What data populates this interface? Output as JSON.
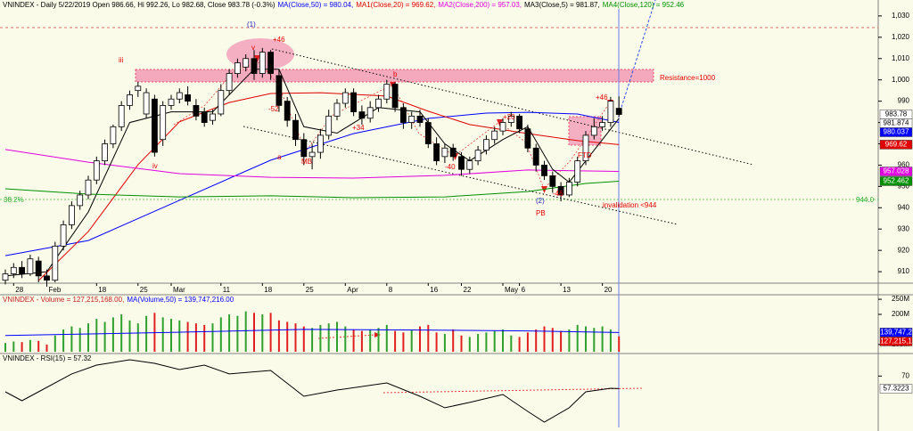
{
  "chart_data": [
    {
      "type": "candlestick",
      "title": "VNINDEX - Daily 5/22/2019 Open 986.66, Hi 992.26, Lo 982.68, Close 983.78 (-0.3%)",
      "categories": [
        null,
        "28",
        null,
        null,
        null,
        "Feb",
        null,
        null,
        null,
        null,
        null,
        "18",
        null,
        null,
        null,
        null,
        "25",
        null,
        null,
        null,
        "Mar",
        null,
        null,
        null,
        null,
        null,
        "11",
        null,
        null,
        null,
        null,
        "18",
        null,
        null,
        null,
        null,
        "25",
        null,
        null,
        null,
        null,
        "Apr",
        null,
        null,
        null,
        null,
        "8",
        null,
        null,
        null,
        null,
        "16",
        null,
        null,
        null,
        "22",
        null,
        null,
        null,
        null,
        "May",
        null,
        "6",
        null,
        null,
        null,
        null,
        "13",
        null,
        null,
        null,
        null,
        "20",
        null,
        null
      ],
      "open": [
        906,
        909,
        912,
        909,
        915,
        908,
        906,
        922,
        932,
        941,
        946,
        953,
        962,
        970,
        978,
        988,
        995,
        984,
        991,
        972,
        988,
        991,
        993,
        988,
        985,
        981,
        984,
        995,
        1003,
        1006,
        1010,
        1003,
        1013,
        1002,
        990,
        981,
        972,
        964,
        966,
        974,
        983,
        989,
        994,
        985,
        982,
        987,
        991,
        998,
        987,
        980,
        983,
        980,
        970,
        964,
        968,
        964,
        958,
        962,
        967,
        972,
        976,
        980,
        983,
        977,
        968,
        960,
        955,
        950,
        946,
        952,
        962,
        974,
        978,
        980,
        986.66
      ],
      "high": [
        911,
        914,
        915,
        918,
        917,
        911,
        924,
        934,
        943,
        948,
        955,
        964,
        972,
        979,
        990,
        995,
        999,
        996,
        993,
        990,
        993,
        996,
        997,
        991,
        987,
        986,
        998,
        1005,
        1010,
        1012,
        1014,
        1015,
        1014,
        1005,
        992,
        984,
        975,
        970,
        977,
        986,
        991,
        996,
        996,
        988,
        990,
        993,
        1000,
        999,
        989,
        985,
        986,
        982,
        973,
        970,
        970,
        966,
        964,
        969,
        974,
        978,
        982,
        985,
        984,
        979,
        970,
        962,
        957,
        952,
        954,
        964,
        976,
        982,
        983,
        992,
        992.26
      ],
      "low": [
        904,
        907,
        907,
        908,
        905,
        903,
        905,
        920,
        930,
        939,
        944,
        951,
        960,
        968,
        976,
        986,
        992,
        982,
        964,
        969,
        986,
        989,
        988,
        981,
        978,
        979,
        983,
        993,
        1001,
        1004,
        1000,
        1001,
        1000,
        985,
        978,
        969,
        960,
        958,
        963,
        972,
        981,
        987,
        983,
        979,
        980,
        985,
        989,
        985,
        977,
        977,
        978,
        968,
        960,
        961,
        962,
        955,
        956,
        960,
        965,
        970,
        974,
        978,
        975,
        966,
        957,
        953,
        947,
        943,
        945,
        950,
        960,
        972,
        976,
        978,
        982.68
      ],
      "close": [
        909,
        912,
        909,
        916,
        908,
        906,
        922,
        932,
        941,
        946,
        953,
        962,
        970,
        978,
        988,
        993,
        997,
        994,
        966,
        988,
        991,
        994,
        990,
        983,
        980,
        984,
        995,
        1003,
        1008,
        1010,
        1003,
        1013,
        1003,
        988,
        981,
        972,
        964,
        966,
        974,
        983,
        989,
        994,
        985,
        982,
        987,
        991,
        998,
        987,
        980,
        983,
        980,
        970,
        962,
        968,
        964,
        958,
        962,
        967,
        972,
        976,
        980,
        983,
        977,
        968,
        960,
        955,
        950,
        946,
        952,
        962,
        974,
        978,
        980,
        990,
        983.78
      ],
      "up_color": "#ffffff",
      "down_color": "#000000",
      "series": [
        {
          "name": "MA(Close,50) = 980.04,",
          "color": "#0000ff",
          "x": [
            0,
            10,
            21,
            32,
            42,
            51,
            58,
            63,
            69,
            74
          ],
          "values": [
            917.5,
            924.6,
            943.5,
            962.3,
            974.8,
            981.9,
            984.4,
            984.8,
            984.0,
            980.04
          ]
        },
        {
          "name": "MA1(Close,20) = 969.62,",
          "color": "#e00000",
          "x": [
            4,
            10,
            16,
            21,
            27,
            32,
            38,
            46,
            51,
            56,
            63,
            69,
            74
          ],
          "values": [
            905.8,
            928.8,
            960.2,
            980.3,
            989.4,
            993.6,
            994.0,
            992.4,
            985.3,
            979.0,
            974.8,
            971.5,
            969.62
          ]
        },
        {
          "name": "MA2(Close,200) = 957.03,",
          "color": "#e000e0",
          "x": [
            0,
            10,
            21,
            32,
            42,
            53,
            63,
            74
          ],
          "values": [
            967.3,
            961.4,
            956.0,
            954.3,
            953.9,
            955.2,
            957.7,
            957.03
          ]
        },
        {
          "name": "MA3(Close,5) = 981.87,",
          "color": "#000000",
          "x": [
            0,
            5,
            10,
            15,
            20,
            25,
            30,
            33,
            36,
            40,
            45,
            50,
            53,
            56,
            60,
            63,
            66,
            68,
            71,
            74
          ],
          "values": [
            908,
            910,
            938,
            980,
            985,
            985,
            1005,
            1005,
            978,
            975,
            987,
            985,
            970,
            962,
            972,
            978,
            958,
            952,
            967,
            981.87
          ]
        },
        {
          "name": "MA4(Close,120) = 952.46",
          "color": "#009000",
          "x": [
            0,
            10,
            21,
            32,
            42,
            53,
            63,
            70,
            74
          ],
          "values": [
            948.9,
            946.4,
            945.1,
            945.6,
            944.7,
            945.1,
            947.6,
            951.4,
            952.46
          ]
        }
      ],
      "ylim": [
        904.6,
        1033.3
      ],
      "yticks": [
        {
          "value": 1030,
          "label": "1,030"
        },
        {
          "value": 1020,
          "label": "1,020"
        },
        {
          "value": 1010,
          "label": "1,010"
        },
        {
          "value": 1000,
          "label": "1,000"
        },
        990,
        980,
        970,
        960,
        950,
        940,
        930,
        920,
        910
      ],
      "price_tags": [
        {
          "value": 983.78,
          "color": "#ffffff"
        },
        {
          "value": 981.874,
          "color": "#ffffff"
        },
        {
          "value": 980.037,
          "color": "#0000ff"
        },
        {
          "value": 969.62,
          "color": "#e00000"
        },
        {
          "value": 957.028,
          "color": "#e000e0"
        },
        {
          "value": 952.462,
          "color": "#009000"
        }
      ],
      "annotations": [
        {
          "text": "(1)",
          "color": "#2020c0"
        },
        {
          "text": "+46",
          "color": "#e00000"
        },
        {
          "text": "v",
          "color": "#e00000"
        },
        {
          "text": "iii",
          "color": "#e00000"
        },
        {
          "text": "iv",
          "color": "#e00000"
        },
        {
          "text": "-52",
          "color": "#e00000"
        },
        {
          "text": "a",
          "color": "#e00000"
        },
        {
          "text": "MB",
          "color": "#e00000"
        },
        {
          "text": "b",
          "color": "#e00000"
        },
        {
          "text": "+34",
          "color": "#e00000"
        },
        {
          "text": "-40",
          "color": "#e00000"
        },
        {
          "text": "+20",
          "color": "#e00000"
        },
        {
          "text": "+46",
          "color": "#e00000"
        },
        {
          "text": "FTD",
          "color": "#e00000"
        },
        {
          "text": "-46",
          "color": "#e00000"
        },
        {
          "text": "(2)",
          "color": "#2020c0"
        },
        {
          "text": "PB",
          "color": "#e00000"
        },
        {
          "text": "Resistance=1000",
          "color": "#e00000"
        },
        {
          "text": "invalidation <944",
          "color": "#e00000"
        },
        {
          "text": "38.2%",
          "color": "#30b030"
        },
        {
          "text": "944.0",
          "color": "#30b030"
        }
      ]
    },
    {
      "type": "bar",
      "title": "VNINDEX - Volume = 127,215,168.00,",
      "values": [
        105,
        110,
        108,
        115,
        112,
        100,
        130,
        150,
        160,
        155,
        170,
        185,
        175,
        190,
        200,
        180,
        170,
        195,
        205,
        190,
        185,
        180,
        175,
        170,
        165,
        170,
        190,
        200,
        195,
        210,
        205,
        200,
        205,
        180,
        175,
        170,
        160,
        155,
        165,
        170,
        175,
        160,
        150,
        145,
        150,
        155,
        165,
        145,
        140,
        150,
        160,
        165,
        140,
        135,
        150,
        130,
        125,
        135,
        140,
        145,
        150,
        130,
        125,
        140,
        150,
        160,
        155,
        145,
        150,
        165,
        160,
        155,
        160,
        150,
        127.215168
      ],
      "up_color": "#30a030",
      "down_color": "#e02020",
      "series": [
        {
          "name": "MA(Volume,50) = 139,747,216.00",
          "color": "#0000ff",
          "x": [
            0,
            20,
            36,
            50,
            63,
            74
          ],
          "values": [
            130,
            140,
            150,
            148,
            145,
            139.747216
          ]
        }
      ],
      "ylim": [
        76,
        265
      ],
      "yticks": [
        {
          "value": 250,
          "label": "250M"
        },
        {
          "value": 200,
          "label": "200M"
        },
        {
          "value": 100,
          "label": "100M"
        }
      ],
      "tags": [
        {
          "value": 139.747216,
          "label": "139,747,2",
          "color": "#0000ff"
        },
        {
          "value": 127.215168,
          "label": "127,215,1",
          "color": "#e00000"
        }
      ]
    },
    {
      "type": "line",
      "title": "VNINDEX - RSI(15) = 57.32",
      "series": [
        {
          "color": "#000000",
          "x": [
            0,
            2,
            4,
            8,
            11,
            15,
            18,
            21,
            24,
            27,
            32,
            36,
            40,
            46,
            50,
            53,
            56,
            60,
            63,
            65,
            68,
            70,
            73,
            74
          ],
          "values": [
            54.1,
            45.1,
            54.1,
            72.1,
            81.0,
            86.4,
            82.8,
            76.5,
            81.0,
            72.1,
            75.6,
            49.6,
            55.9,
            63.1,
            49.6,
            38.0,
            43.4,
            51.4,
            34.4,
            23.6,
            38.0,
            54.1,
            57.7,
            57.32
          ]
        }
      ],
      "ylim": [
        20,
        90
      ],
      "yticks": [
        70
      ],
      "tags": [
        {
          "value": 57.3223,
          "color": "#ffffff"
        }
      ]
    }
  ]
}
